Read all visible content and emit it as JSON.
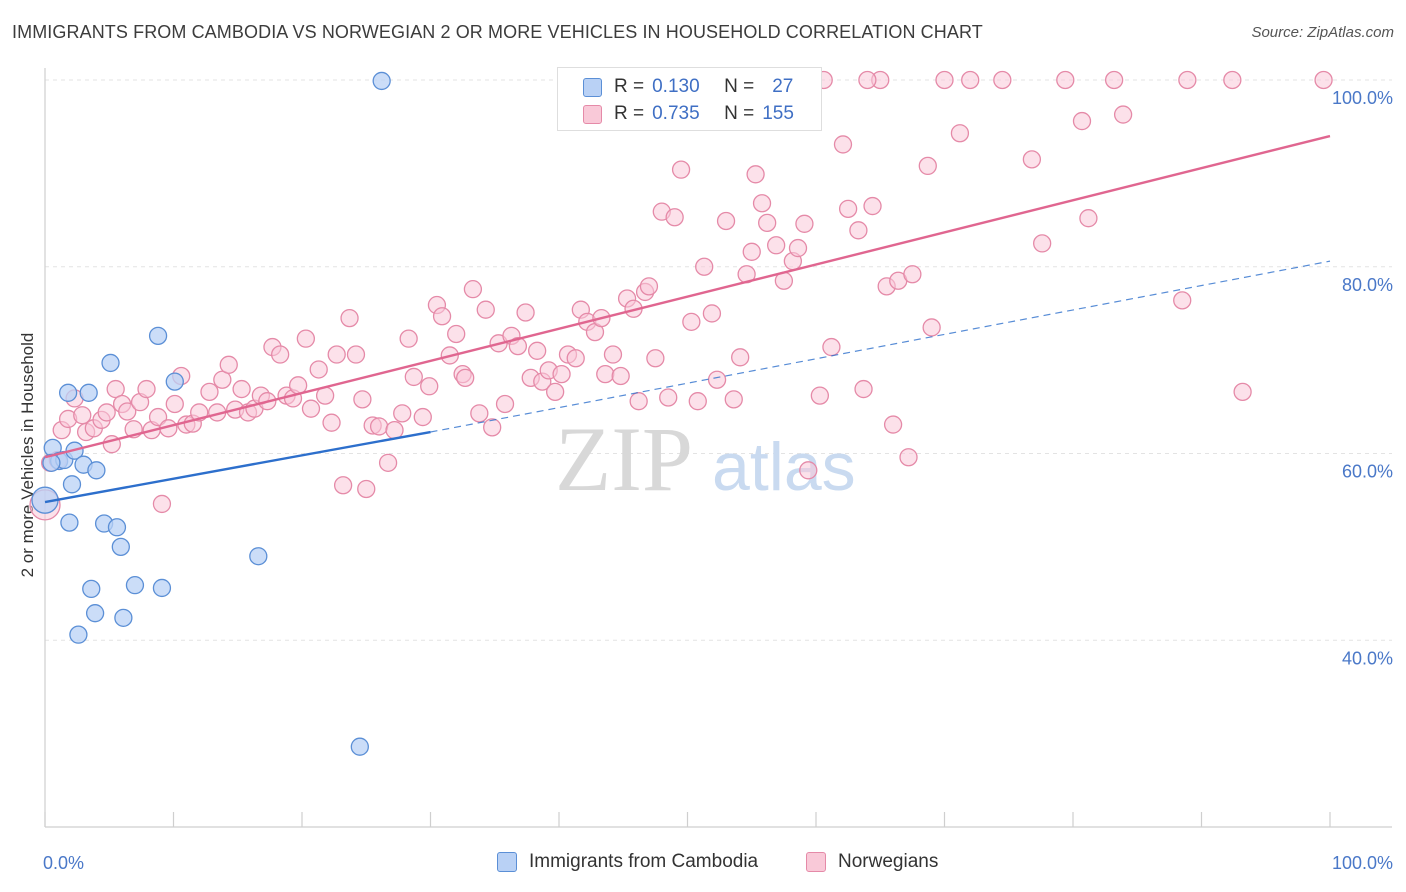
{
  "header": {
    "title": "IMMIGRANTS FROM CAMBODIA VS NORWEGIAN 2 OR MORE VEHICLES IN HOUSEHOLD CORRELATION CHART",
    "source": "Source: ZipAtlas.com"
  },
  "watermark": {
    "part1": "ZIP",
    "part2": "atlas"
  },
  "legend": {
    "r_label": "R =",
    "n_label": "N =",
    "rows": [
      {
        "r": "0.130",
        "n": "27"
      },
      {
        "r": "0.735",
        "n": "155"
      }
    ]
  },
  "colors": {
    "cambodia_fill": "#b9d1f5",
    "cambodia_stroke": "#5b8fd6",
    "cambodia_line": "#2d6fcc",
    "norway_fill": "#f9c9d8",
    "norway_stroke": "#e58aa8",
    "norway_line": "#e06690",
    "tick_text": "#4a78c8",
    "grid": "#e3e3e3"
  },
  "chart_data": {
    "type": "scatter",
    "title": "IMMIGRANTS FROM CAMBODIA VS NORWEGIAN 2 OR MORE VEHICLES IN HOUSEHOLD CORRELATION CHART",
    "ylabel": "2 or more Vehicles in Household",
    "xlabel": "",
    "xlim": [
      0,
      100
    ],
    "ylim": [
      20,
      100
    ],
    "x_tick_labels": [
      "0.0%",
      "100.0%"
    ],
    "y_ticks": [
      40,
      60,
      80,
      100
    ],
    "y_tick_labels": [
      "40.0%",
      "60.0%",
      "80.0%",
      "100.0%"
    ],
    "grid": true,
    "legend_placement": "bottom-center",
    "series": [
      {
        "name": "Immigrants from Cambodia",
        "r": 0.13,
        "n": 27,
        "trend": {
          "x0": 0,
          "y0": 54.8,
          "x1": 30,
          "y1": 62.3,
          "dashed_to_x": 100,
          "dashed_to_y": 80.6
        },
        "points": [
          [
            26.2,
            99.9
          ],
          [
            0.0,
            55.0
          ],
          [
            0.6,
            60.6
          ],
          [
            1.1,
            59.2
          ],
          [
            1.5,
            59.3
          ],
          [
            1.8,
            66.5
          ],
          [
            1.9,
            52.6
          ],
          [
            2.1,
            56.7
          ],
          [
            2.3,
            60.3
          ],
          [
            2.6,
            40.6
          ],
          [
            3.0,
            58.8
          ],
          [
            3.4,
            66.5
          ],
          [
            3.6,
            45.5
          ],
          [
            3.9,
            42.9
          ],
          [
            4.0,
            58.2
          ],
          [
            4.6,
            52.5
          ],
          [
            5.1,
            69.7
          ],
          [
            5.6,
            52.1
          ],
          [
            5.9,
            50.0
          ],
          [
            6.1,
            42.4
          ],
          [
            7.0,
            45.9
          ],
          [
            8.8,
            72.6
          ],
          [
            9.1,
            45.6
          ],
          [
            10.1,
            67.7
          ],
          [
            16.6,
            49.0
          ],
          [
            24.5,
            28.6
          ],
          [
            0.5,
            59.0
          ]
        ]
      },
      {
        "name": "Norwegians",
        "r": 0.735,
        "n": 155,
        "trend": {
          "x0": 0,
          "y0": 59.6,
          "x1": 100,
          "y1": 94.0
        },
        "points": [
          [
            0.0,
            54.5
          ],
          [
            0.4,
            59.0
          ],
          [
            1.0,
            59.3
          ],
          [
            1.3,
            62.5
          ],
          [
            1.8,
            63.7
          ],
          [
            2.3,
            65.9
          ],
          [
            2.9,
            64.1
          ],
          [
            3.2,
            62.3
          ],
          [
            3.8,
            62.7
          ],
          [
            4.4,
            63.6
          ],
          [
            4.8,
            64.4
          ],
          [
            5.2,
            61.0
          ],
          [
            5.5,
            66.9
          ],
          [
            6.0,
            65.3
          ],
          [
            6.4,
            64.5
          ],
          [
            6.9,
            62.6
          ],
          [
            7.4,
            65.5
          ],
          [
            7.9,
            66.9
          ],
          [
            8.3,
            62.5
          ],
          [
            8.8,
            63.9
          ],
          [
            9.1,
            54.6
          ],
          [
            9.6,
            62.7
          ],
          [
            10.1,
            65.3
          ],
          [
            10.6,
            68.3
          ],
          [
            11.0,
            63.1
          ],
          [
            11.5,
            63.2
          ],
          [
            12.0,
            64.4
          ],
          [
            12.8,
            66.6
          ],
          [
            13.4,
            64.4
          ],
          [
            13.8,
            67.9
          ],
          [
            14.3,
            69.5
          ],
          [
            14.8,
            64.7
          ],
          [
            15.3,
            66.9
          ],
          [
            15.8,
            64.4
          ],
          [
            16.3,
            64.8
          ],
          [
            16.8,
            66.2
          ],
          [
            17.3,
            65.6
          ],
          [
            17.7,
            71.4
          ],
          [
            18.3,
            70.6
          ],
          [
            18.8,
            66.2
          ],
          [
            19.3,
            65.9
          ],
          [
            19.7,
            67.3
          ],
          [
            20.3,
            72.3
          ],
          [
            20.7,
            64.8
          ],
          [
            21.3,
            69.0
          ],
          [
            21.8,
            66.2
          ],
          [
            22.3,
            63.3
          ],
          [
            22.7,
            70.6
          ],
          [
            23.2,
            56.6
          ],
          [
            23.7,
            74.5
          ],
          [
            24.2,
            70.6
          ],
          [
            24.7,
            65.8
          ],
          [
            25.0,
            56.2
          ],
          [
            25.5,
            63.0
          ],
          [
            26.0,
            62.9
          ],
          [
            26.7,
            59.0
          ],
          [
            27.2,
            62.5
          ],
          [
            27.8,
            64.3
          ],
          [
            28.3,
            72.3
          ],
          [
            28.7,
            68.2
          ],
          [
            29.4,
            63.9
          ],
          [
            29.9,
            67.2
          ],
          [
            30.5,
            75.9
          ],
          [
            30.9,
            74.7
          ],
          [
            31.5,
            70.5
          ],
          [
            32.0,
            72.8
          ],
          [
            32.5,
            68.5
          ],
          [
            32.7,
            68.1
          ],
          [
            33.3,
            77.6
          ],
          [
            33.8,
            64.3
          ],
          [
            34.3,
            75.4
          ],
          [
            34.8,
            62.8
          ],
          [
            35.3,
            71.8
          ],
          [
            35.8,
            65.3
          ],
          [
            36.3,
            72.6
          ],
          [
            36.8,
            71.5
          ],
          [
            37.4,
            75.1
          ],
          [
            37.8,
            68.1
          ],
          [
            38.3,
            71.0
          ],
          [
            38.7,
            67.7
          ],
          [
            39.2,
            68.9
          ],
          [
            39.7,
            66.6
          ],
          [
            40.2,
            68.5
          ],
          [
            40.7,
            70.6
          ],
          [
            41.3,
            70.2
          ],
          [
            41.7,
            75.4
          ],
          [
            42.2,
            74.1
          ],
          [
            42.8,
            73.0
          ],
          [
            43.3,
            74.5
          ],
          [
            43.6,
            68.5
          ],
          [
            44.2,
            70.6
          ],
          [
            44.8,
            68.3
          ],
          [
            45.3,
            76.6
          ],
          [
            45.8,
            75.5
          ],
          [
            46.2,
            65.6
          ],
          [
            46.7,
            77.3
          ],
          [
            47.0,
            77.9
          ],
          [
            47.5,
            70.2
          ],
          [
            48.0,
            85.9
          ],
          [
            48.5,
            66.0
          ],
          [
            49.0,
            85.3
          ],
          [
            49.5,
            90.4
          ],
          [
            50.3,
            74.1
          ],
          [
            50.8,
            65.6
          ],
          [
            51.3,
            80.0
          ],
          [
            51.9,
            75.0
          ],
          [
            52.3,
            67.9
          ],
          [
            53.0,
            84.9
          ],
          [
            53.6,
            65.8
          ],
          [
            54.1,
            70.3
          ],
          [
            54.6,
            79.2
          ],
          [
            55.0,
            81.6
          ],
          [
            55.3,
            89.9
          ],
          [
            55.8,
            86.8
          ],
          [
            56.2,
            84.7
          ],
          [
            56.9,
            82.3
          ],
          [
            57.5,
            78.5
          ],
          [
            58.2,
            80.6
          ],
          [
            58.6,
            82.0
          ],
          [
            59.1,
            84.6
          ],
          [
            59.4,
            58.2
          ],
          [
            60.3,
            66.2
          ],
          [
            60.6,
            100.0
          ],
          [
            61.2,
            71.4
          ],
          [
            62.1,
            93.1
          ],
          [
            62.5,
            86.2
          ],
          [
            63.3,
            83.9
          ],
          [
            63.7,
            66.9
          ],
          [
            64.4,
            86.5
          ],
          [
            65.0,
            100.0
          ],
          [
            65.5,
            77.9
          ],
          [
            66.0,
            63.1
          ],
          [
            66.4,
            78.5
          ],
          [
            67.2,
            59.6
          ],
          [
            67.5,
            79.2
          ],
          [
            68.7,
            90.8
          ],
          [
            69.0,
            73.5
          ],
          [
            71.2,
            94.3
          ],
          [
            72.0,
            100.0
          ],
          [
            76.8,
            91.5
          ],
          [
            77.6,
            82.5
          ],
          [
            79.4,
            100.0
          ],
          [
            80.7,
            95.6
          ],
          [
            81.2,
            85.2
          ],
          [
            83.2,
            100.0
          ],
          [
            83.9,
            96.3
          ],
          [
            88.5,
            76.4
          ],
          [
            88.9,
            100.0
          ],
          [
            92.4,
            100.0
          ],
          [
            93.2,
            66.6
          ],
          [
            99.5,
            100.0
          ],
          [
            64.0,
            100.0
          ],
          [
            74.5,
            100.0
          ],
          [
            70.0,
            100.0
          ],
          [
            57.0,
            100.0
          ]
        ]
      }
    ]
  },
  "bottom_legend": [
    {
      "label": "Immigrants from Cambodia"
    },
    {
      "label": "Norwegians"
    }
  ]
}
